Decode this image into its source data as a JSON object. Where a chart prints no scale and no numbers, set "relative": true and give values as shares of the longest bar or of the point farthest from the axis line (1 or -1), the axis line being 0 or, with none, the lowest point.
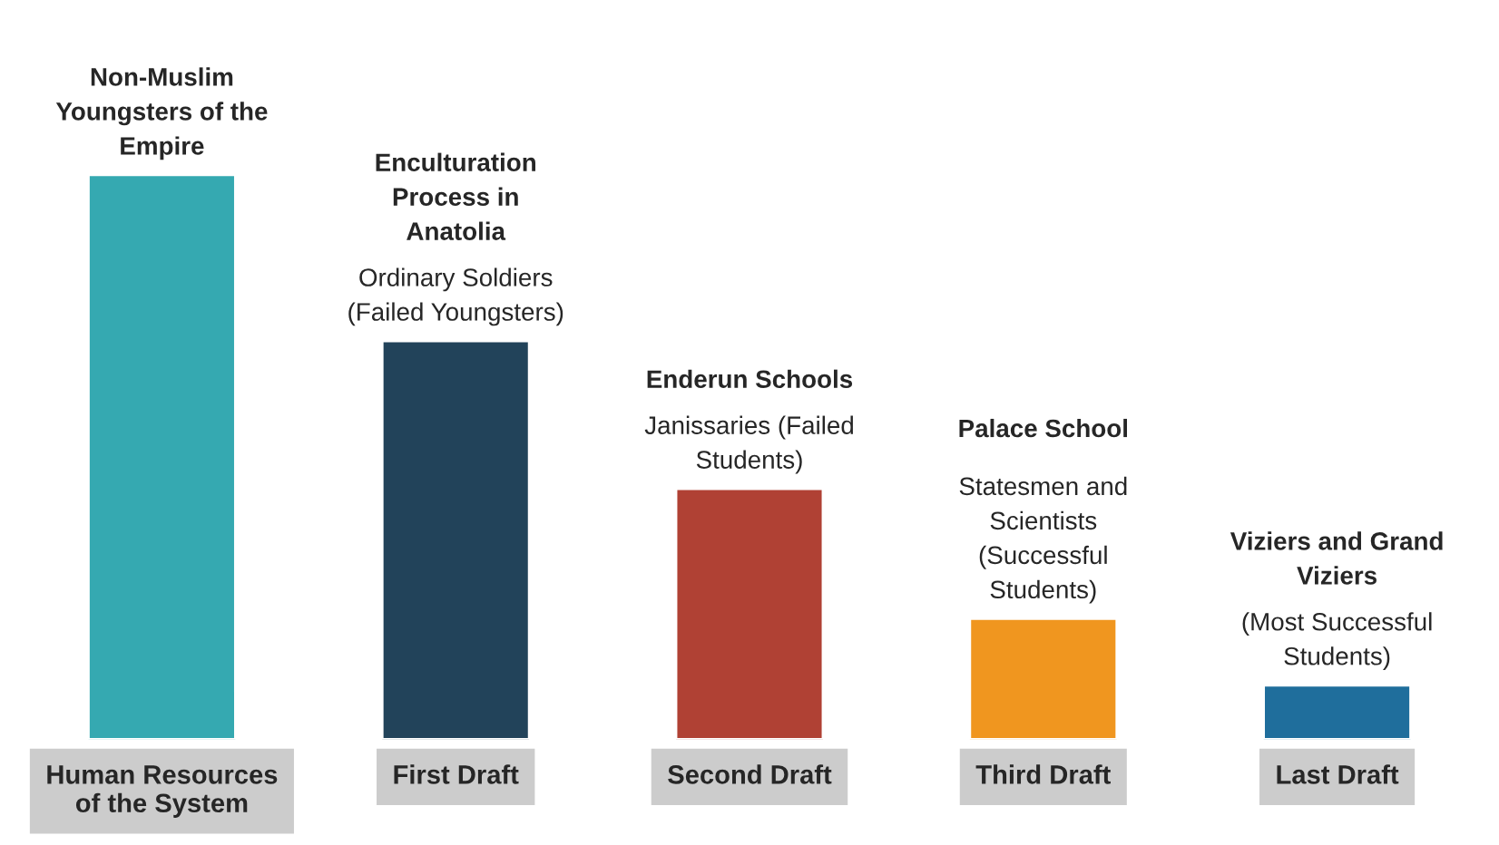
{
  "chart_data": {
    "type": "bar",
    "relative": true,
    "categories": [
      "Human Resources of the System",
      "First Draft",
      "Second Draft",
      "Third Draft",
      "Last Draft"
    ],
    "values": [
      1,
      0.706,
      0.444,
      0.214,
      0.096
    ],
    "colors": [
      "#35a9b1",
      "#22435a",
      "#b04134",
      "#f0961f",
      "#1f6e9c"
    ],
    "annotations": [
      {
        "text": "Non-Muslim Youngsters of the Empire",
        "x": "Human Resources of the System",
        "y": 1
      },
      "Enculturation Process in Anatolia",
      {
        "text": "Ordinary Soldiers (Failed Youngsters)",
        "x": "First Draft",
        "y": 0.706
      },
      "Enderun Schools",
      {
        "text": "Janissaries (Failed Students)",
        "x": "Second Draft",
        "y": 0.444
      },
      "Palace School",
      {
        "text": "Statesmen and Scientists (Successful Students)",
        "x": "Third Draft",
        "y": 0.214
      },
      "Viziers and Grand Viziers",
      {
        "text": "(Most Successful Students)",
        "x": "Last Draft",
        "y": 0.096
      }
    ],
    "grid": false,
    "legend": false
  }
}
